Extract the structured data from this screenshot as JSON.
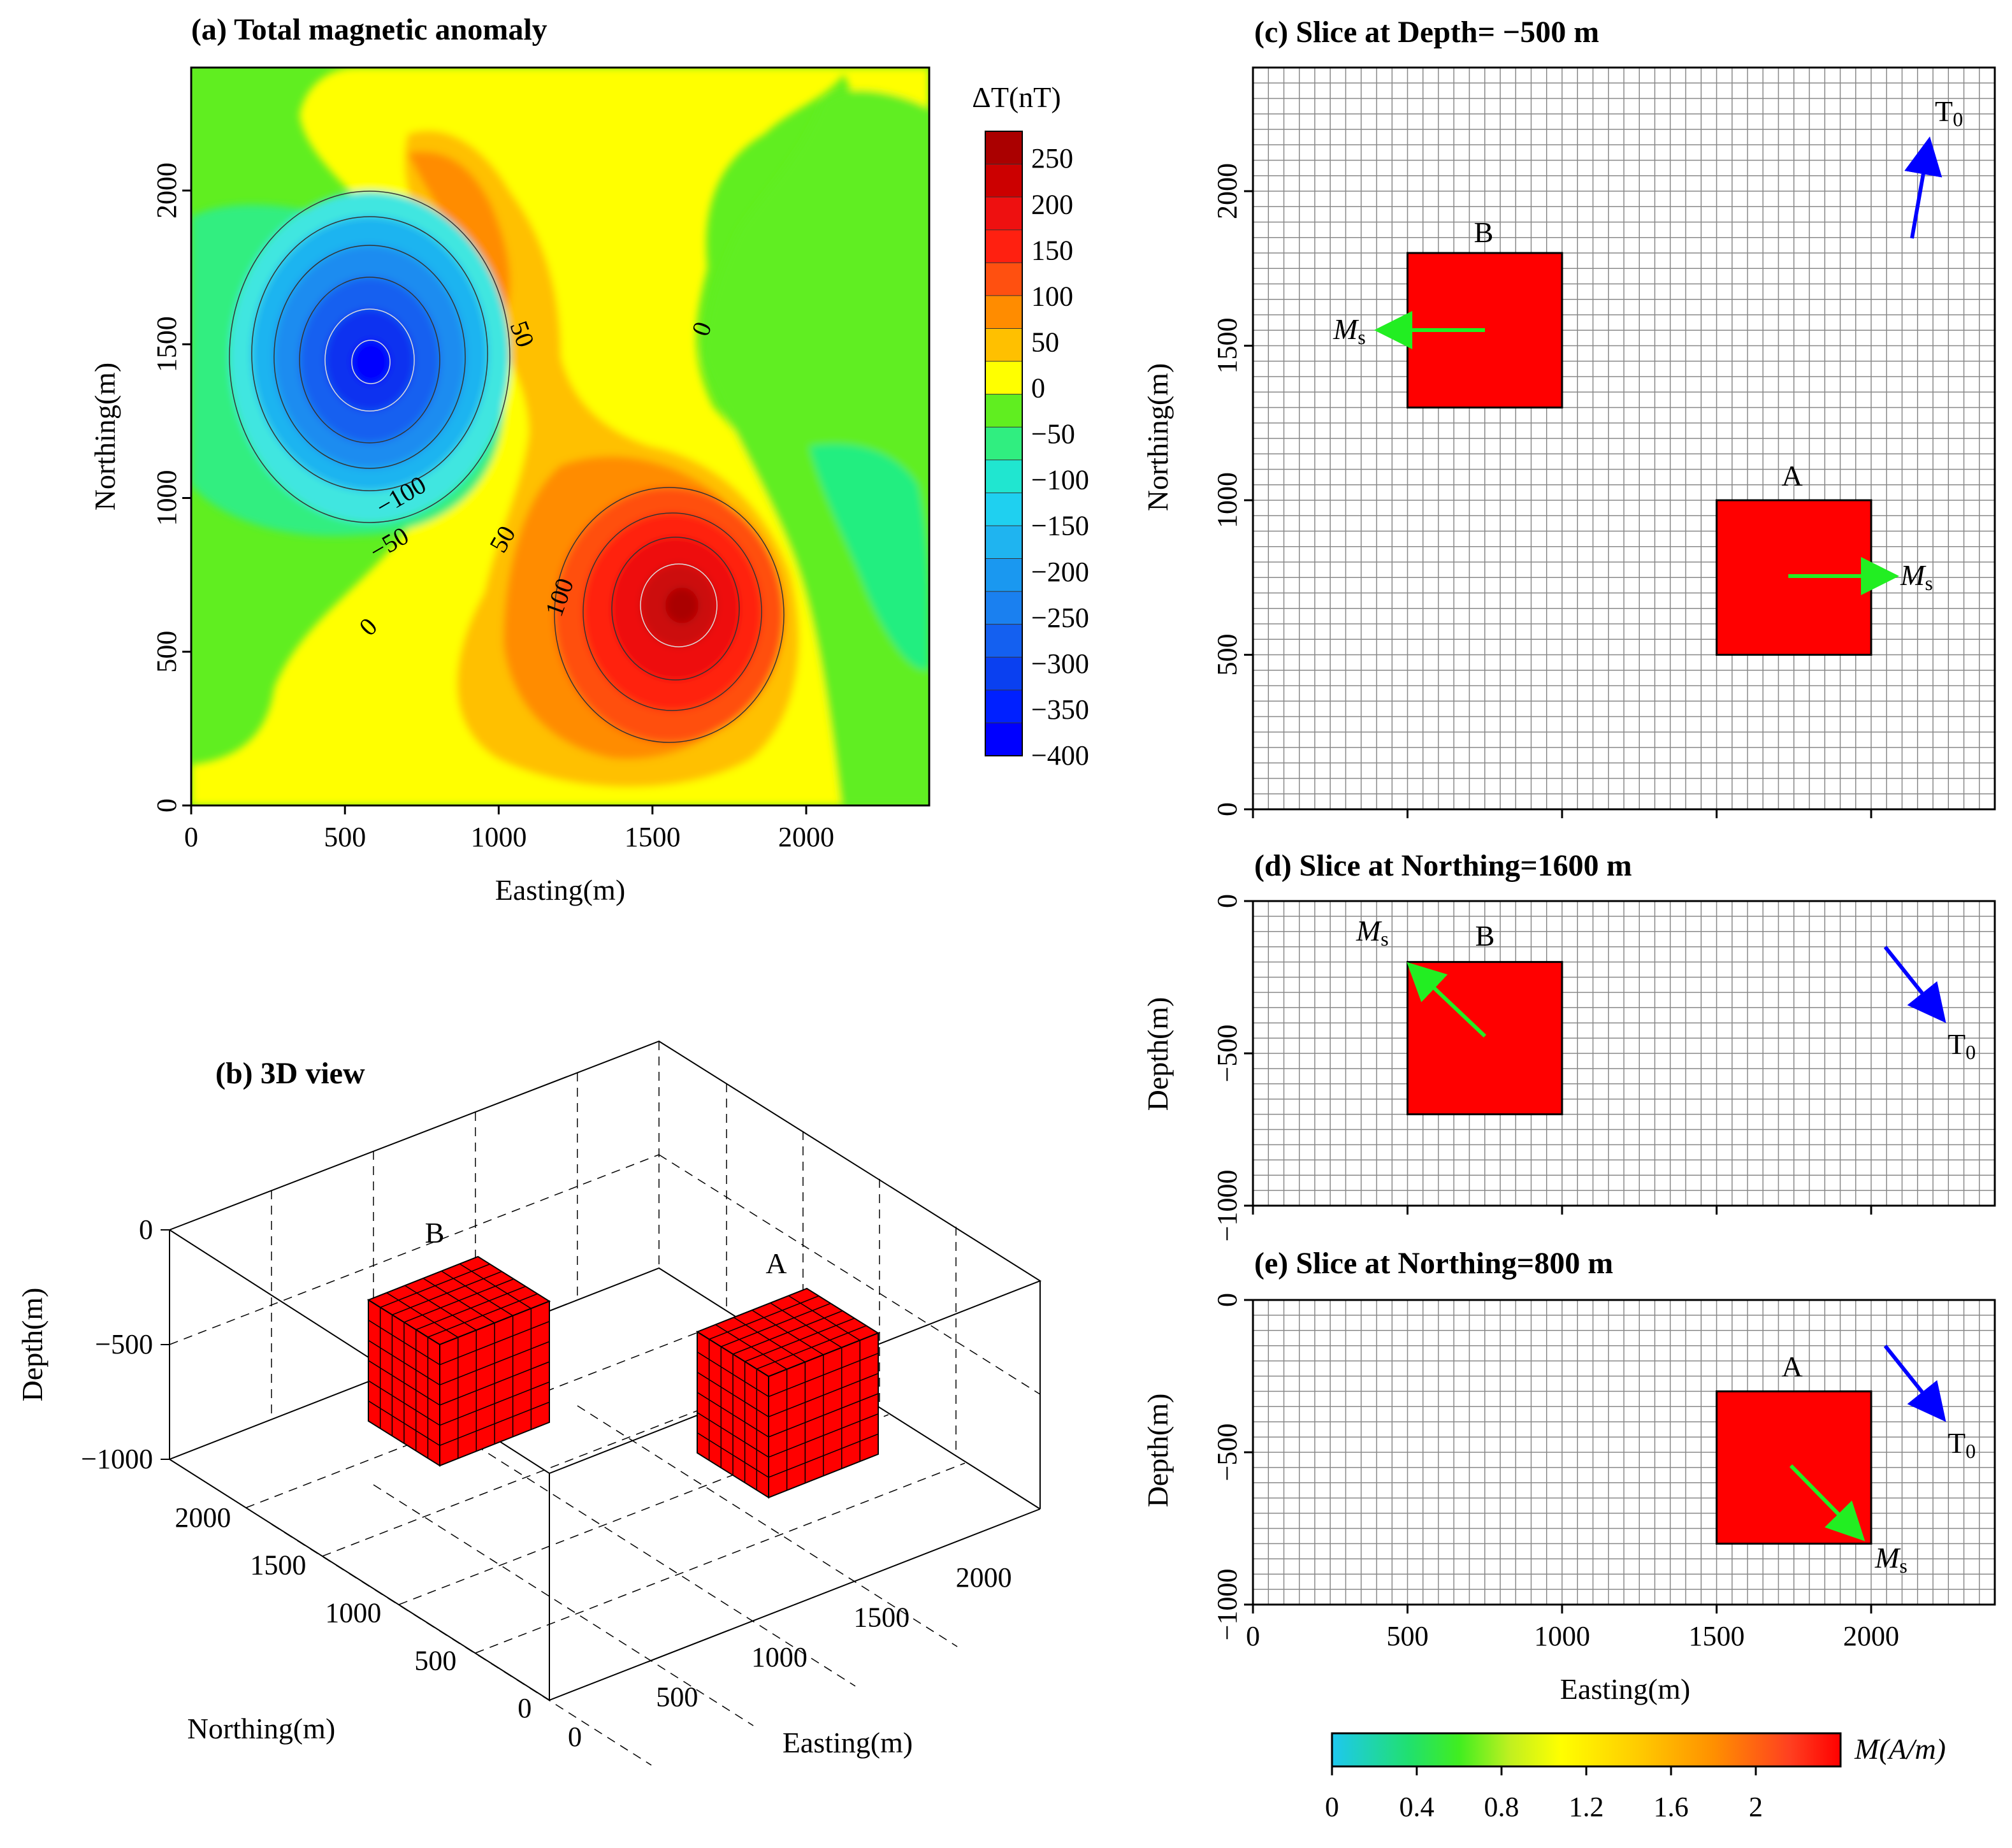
{
  "chart_data": [
    {
      "panel": "a",
      "type": "heatmap",
      "title": "(a) Total magnetic anomaly",
      "xlabel": "Easting(m)",
      "ylabel": "Northing(m)",
      "xlim": [
        0,
        2400
      ],
      "ylim": [
        0,
        2400
      ],
      "xticks": [
        "0",
        "500",
        "1000",
        "1500",
        "2000"
      ],
      "yticks": [
        "0",
        "500",
        "1000",
        "1500",
        "2000"
      ],
      "colorbar_title": "ΔT(nT)",
      "colorbar_levels": [
        250,
        200,
        150,
        100,
        50,
        0,
        -50,
        -100,
        -150,
        -200,
        -250,
        -300,
        -350,
        -400
      ],
      "colorbar_labels": [
        "250",
        "200",
        "150",
        "100",
        "50",
        "0",
        "−50",
        "−100",
        "−150",
        "−200",
        "−250",
        "−300",
        "−350",
        "−400"
      ],
      "contour_labels": [
        "50",
        "0",
        "−100",
        "−50",
        "50",
        "100",
        "0"
      ],
      "anomalies": [
        {
          "label": "positive peak",
          "easting": 1570,
          "northing": 620,
          "value": 280
        },
        {
          "label": "negative peak",
          "easting": 580,
          "northing": 1430,
          "value": -400
        }
      ]
    },
    {
      "panel": "b",
      "type": "3d-boxes",
      "title": "(b) 3D view",
      "xlabel": "Easting(m)",
      "ylabel": "Northing(m)",
      "zlabel": "Depth(m)",
      "xticks": [
        "0",
        "500",
        "1000",
        "1500",
        "2000"
      ],
      "yticks": [
        "0",
        "500",
        "1000",
        "1500",
        "2000"
      ],
      "zticks": [
        "0",
        "−500",
        "−1000"
      ],
      "bodies": [
        {
          "label": "A",
          "easting": [
            1500,
            2000
          ],
          "northing": [
            500,
            1000
          ],
          "depth": [
            -300,
            -800
          ]
        },
        {
          "label": "B",
          "easting": [
            500,
            1000
          ],
          "northing": [
            1300,
            1800
          ],
          "depth": [
            -200,
            -700
          ]
        }
      ]
    },
    {
      "panel": "c",
      "type": "slice",
      "title": "(c) Slice at Depth= −500 m",
      "ylabel": "Northing(m)",
      "xlim": [
        0,
        2400
      ],
      "ylim": [
        0,
        2400
      ],
      "yticks": [
        "0",
        "500",
        "1000",
        "1500",
        "2000"
      ],
      "bodies": [
        {
          "label": "A",
          "x": [
            1500,
            2000
          ],
          "y": [
            500,
            1000
          ]
        },
        {
          "label": "B",
          "x": [
            500,
            1000
          ],
          "y": [
            1300,
            1800
          ]
        }
      ],
      "arrows": [
        {
          "label": "Ms",
          "body": "A",
          "direction": "east"
        },
        {
          "label": "Ms",
          "body": "B",
          "direction": "west"
        },
        {
          "label": "T0",
          "direction": "north-northeast"
        }
      ]
    },
    {
      "panel": "d",
      "type": "slice",
      "title": "(d) Slice at Northing=1600 m",
      "ylabel": "Depth(m)",
      "xlim": [
        0,
        2400
      ],
      "ylim": [
        -1000,
        0
      ],
      "yticks": [
        "0",
        "−500",
        "−1000"
      ],
      "bodies": [
        {
          "label": "B",
          "x": [
            500,
            1000
          ],
          "y": [
            -200,
            -700
          ]
        }
      ],
      "arrows": [
        {
          "label": "Ms",
          "body": "B",
          "direction": "up-west"
        },
        {
          "label": "T0",
          "direction": "down-east"
        }
      ]
    },
    {
      "panel": "e",
      "type": "slice",
      "title": "(e) Slice at Northing=800 m",
      "xlabel": "Easting(m)",
      "ylabel": "Depth(m)",
      "xlim": [
        0,
        2400
      ],
      "ylim": [
        -1000,
        0
      ],
      "xticks": [
        "0",
        "500",
        "1000",
        "1500",
        "2000"
      ],
      "yticks": [
        "0",
        "−500",
        "−1000"
      ],
      "bodies": [
        {
          "label": "A",
          "x": [
            1500,
            2000
          ],
          "y": [
            -300,
            -800
          ]
        }
      ],
      "arrows": [
        {
          "label": "Ms",
          "body": "A",
          "direction": "down-east"
        },
        {
          "label": "T0",
          "direction": "down-east"
        }
      ]
    },
    {
      "panel": "colorbar",
      "type": "colorbar",
      "label": "M(A/m)",
      "ticks": [
        "0",
        "0.4",
        "0.8",
        "1.2",
        "1.6",
        "2"
      ],
      "range": [
        0,
        2.4
      ]
    }
  ],
  "text": {
    "a_title": "(a) Total magnetic anomaly",
    "b_title": "(b) 3D view",
    "c_title": "(c) Slice at Depth= −500 m",
    "d_title": "(d) Slice at Northing=1600 m",
    "e_title": "(e) Slice at Northing=800 m",
    "easting": "Easting(m)",
    "northing": "Northing(m)",
    "depth": "Depth(m)",
    "dt_label": "ΔT(nT)",
    "m_label": "M(A/m)",
    "body_a": "A",
    "body_b": "B",
    "ms": "M",
    "ms_sub": "s",
    "t0": "T",
    "t0_sub": "0"
  },
  "colors": {
    "body": "#ff0000",
    "ms_arrow": "#22ee22",
    "t0_arrow": "#0000ff",
    "grid": "#888888"
  }
}
